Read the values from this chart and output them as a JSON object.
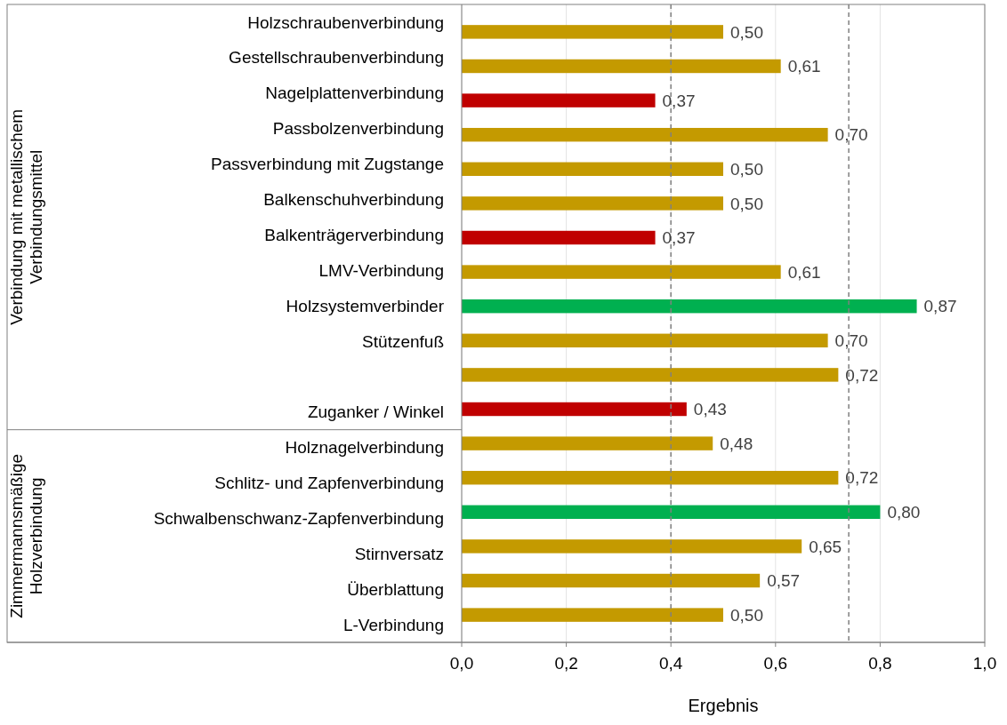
{
  "chart_data": {
    "type": "bar",
    "orientation": "horizontal",
    "xlabel": "Ergebnis",
    "categories": [
      "Holzschraubenverbindung",
      "Gestellschraubenverbindung",
      "Nagelplattenverbindung",
      "Passbolzenverbindung",
      "Passverbindung mit Zugstange",
      "Balkenschuhverbindung",
      "Balkenträgerverbindung",
      "LMV-Verbindung",
      "Holzsystemverbinder",
      "Stützenfuß",
      null,
      "Zuganker / Winkel",
      "Holznagelverbindung",
      "Schlitz- und Zapfenverbindung",
      "Schwalbenschwanz-Zapfenverbindung",
      "Stirnversatz",
      "Überblattung",
      "L-Verbindung"
    ],
    "values": [
      0.5,
      0.61,
      0.37,
      0.7,
      0.5,
      0.5,
      0.37,
      0.61,
      0.87,
      0.7,
      0.72,
      0.43,
      0.48,
      0.72,
      0.8,
      0.65,
      0.57,
      0.5
    ],
    "value_labels": [
      "0,50",
      "0,61",
      "0,37",
      "0,70",
      "0,50",
      "0,50",
      "0,37",
      "0,61",
      "0,87",
      "0,70",
      "0,72",
      "0,43",
      "0,48",
      "0,72",
      "0,80",
      "0,65",
      "0,57",
      "0,50"
    ],
    "colors": [
      "#c49a00",
      "#c49a00",
      "#c00000",
      "#c49a00",
      "#c49a00",
      "#c49a00",
      "#c00000",
      "#c49a00",
      "#00b050",
      "#c49a00",
      "#c49a00",
      "#c00000",
      "#c49a00",
      "#c49a00",
      "#00b050",
      "#c49a00",
      "#c49a00",
      "#c49a00"
    ],
    "xlim": [
      0,
      1
    ],
    "xticks": [
      {
        "value": 0,
        "label": "0,0"
      },
      {
        "value": 0.2,
        "label": "0,2"
      },
      {
        "value": 0.4,
        "label": "0,4"
      },
      {
        "value": 0.6,
        "label": "0,6"
      },
      {
        "value": 0.8,
        "label": "0,8"
      },
      {
        "value": 1,
        "label": "1,0"
      }
    ],
    "grid": "x",
    "ref_lines": [
      {
        "axis": "x",
        "value": 0.4,
        "color": "#808080",
        "line_style": "dashed"
      },
      {
        "axis": "x",
        "value": 0.74,
        "color": "#808080",
        "line_style": "dashed"
      }
    ],
    "annotations": [
      "Verbindung mit metallischem Verbindungsmittel",
      "Zimmermannsmäßige Holzverbindung"
    ]
  }
}
